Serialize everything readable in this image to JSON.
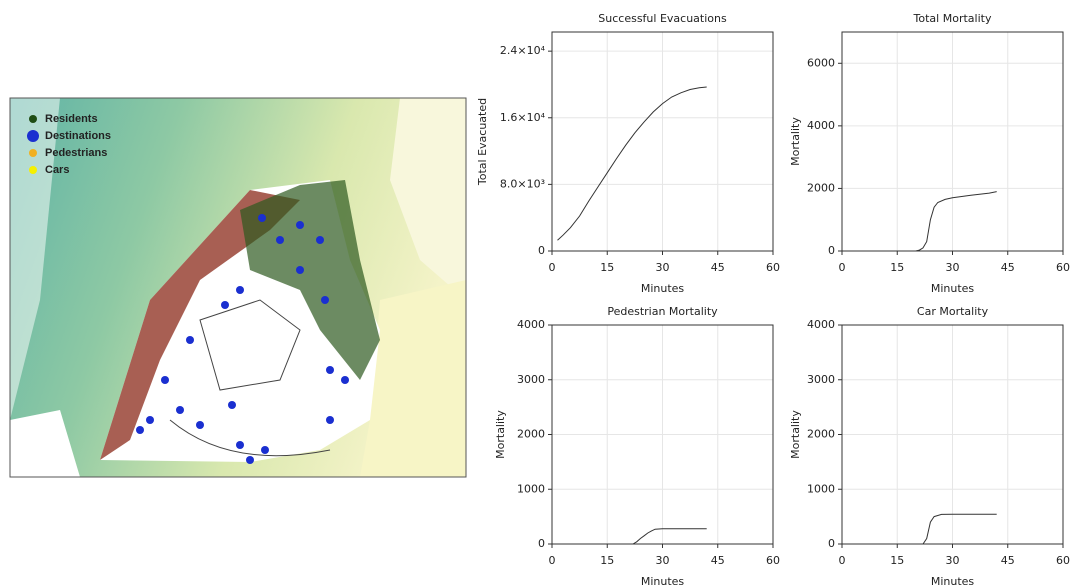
{
  "map_legend": {
    "items": [
      "Residents",
      "Destinations",
      "Pedestrians",
      "Cars"
    ]
  },
  "chart_data": [
    {
      "type": "line",
      "title": "Successful Evacuations",
      "x_label": "Minutes",
      "y_label": "Total Evacuated",
      "x": [
        1.5,
        3,
        5,
        7.5,
        10,
        12.5,
        15,
        17.5,
        20,
        22.5,
        25,
        27.5,
        30,
        32.5,
        35,
        37.5,
        40,
        42
      ],
      "values": [
        1300,
        1900,
        2800,
        4200,
        6000,
        7700,
        9400,
        11100,
        12700,
        14200,
        15500,
        16700,
        17700,
        18500,
        19000,
        19400,
        19600,
        19700
      ],
      "color": "#333333",
      "xlim": [
        0,
        60
      ],
      "xticks": [
        0,
        15,
        30,
        45,
        60
      ],
      "ylim": [
        0,
        26300
      ],
      "yticks": [
        0,
        {
          "value": 8000,
          "label": "8.0×10³"
        },
        {
          "value": 16000,
          "label": "1.6×10⁴"
        },
        {
          "value": 24000,
          "label": "2.4×10⁴"
        }
      ],
      "grid": true
    },
    {
      "type": "line",
      "title": "Total Mortality",
      "x_label": "Minutes",
      "y_label": "Mortality",
      "x": [
        17,
        20,
        21,
        22,
        23,
        24,
        25,
        26,
        28,
        30,
        35,
        40,
        42
      ],
      "values": [
        0,
        0,
        30,
        100,
        300,
        1000,
        1400,
        1550,
        1650,
        1700,
        1780,
        1850,
        1900
      ],
      "color": "#333333",
      "xlim": [
        0,
        60
      ],
      "xticks": [
        0,
        15,
        30,
        45,
        60
      ],
      "ylim": [
        0,
        7000
      ],
      "yticks": [
        0,
        2000,
        4000,
        6000
      ],
      "grid": true
    },
    {
      "type": "line",
      "title": "Pedestrian Mortality",
      "x_label": "Minutes",
      "y_label": "Mortality",
      "x": [
        21,
        22,
        23,
        24,
        25,
        26,
        27,
        28,
        30,
        35,
        42
      ],
      "values": [
        0,
        0,
        40,
        100,
        150,
        200,
        240,
        270,
        280,
        280,
        280
      ],
      "color": "#333333",
      "xlim": [
        0,
        60
      ],
      "xticks": [
        0,
        15,
        30,
        45,
        60
      ],
      "ylim": [
        0,
        4000
      ],
      "yticks": [
        0,
        1000,
        2000,
        3000,
        4000
      ],
      "grid": true
    },
    {
      "type": "line",
      "title": "Car Mortality",
      "x_label": "Minutes",
      "y_label": "Mortality",
      "x": [
        21,
        22,
        23,
        24,
        25,
        26,
        27,
        30,
        35,
        42
      ],
      "values": [
        0,
        0,
        100,
        400,
        500,
        520,
        540,
        545,
        545,
        545
      ],
      "color": "#333333",
      "xlim": [
        0,
        60
      ],
      "xticks": [
        0,
        15,
        30,
        45,
        60
      ],
      "ylim": [
        0,
        4000
      ],
      "yticks": [
        0,
        1000,
        2000,
        3000,
        4000
      ],
      "grid": true
    }
  ]
}
